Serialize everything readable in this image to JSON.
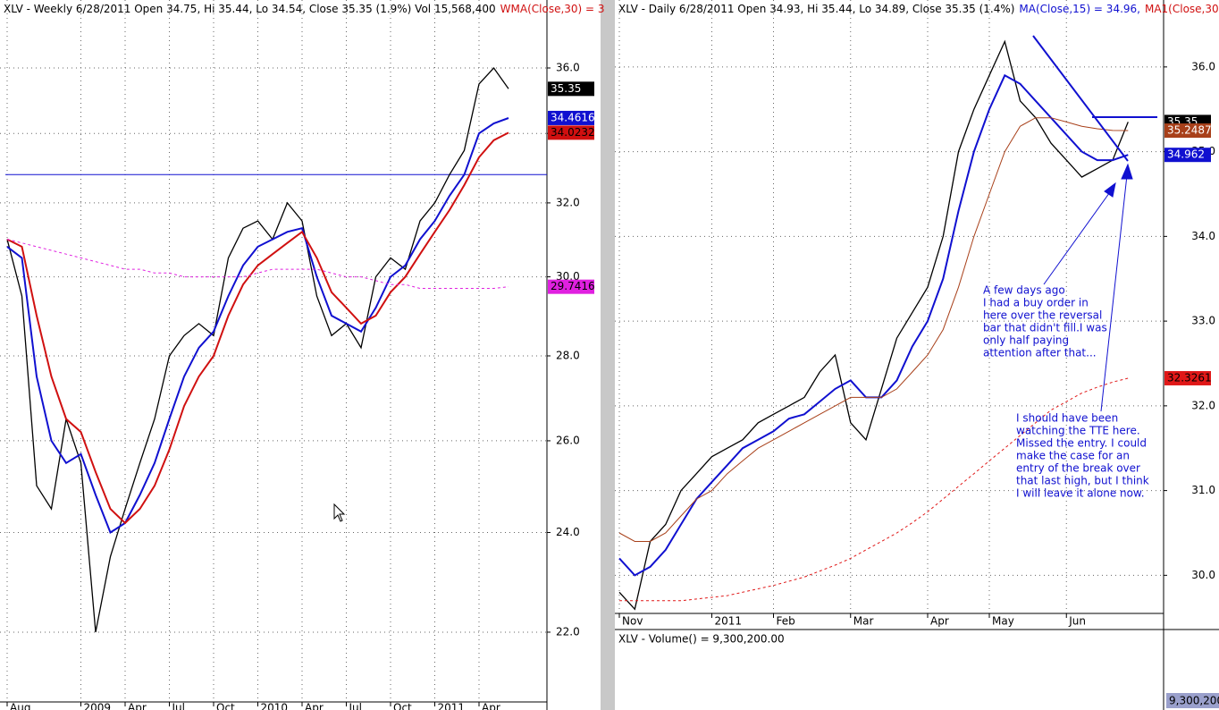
{
  "chart_data": [
    {
      "type": "line",
      "title_parts": [
        {
          "text": "XLV - Weekly 6/28/2011 Open 34.75, Hi 35.44, Lo 34.54, Close 35.35 (1.9%) Vol 15,568,400",
          "color": "#000000"
        },
        {
          "text": "WMA(Close,30) = 3",
          "color": "#d01010"
        }
      ],
      "categories": [
        "Aug",
        null,
        null,
        null,
        null,
        "2009",
        null,
        null,
        "Apr",
        null,
        null,
        "Jul",
        null,
        null,
        "Oct",
        null,
        null,
        "2010",
        null,
        null,
        "Apr",
        null,
        null,
        "Jul",
        null,
        null,
        "Oct",
        null,
        null,
        "2011",
        null,
        null,
        "Apr",
        null,
        null
      ],
      "series": [
        {
          "color": "#000000",
          "values": [
            31,
            29.5,
            25,
            24.5,
            26.5,
            25.5,
            22,
            23.5,
            24.5,
            25.5,
            26.5,
            28,
            28.5,
            28.8,
            28.5,
            30.5,
            31.3,
            31.5,
            31,
            32,
            31.5,
            29.5,
            28.5,
            28.8,
            28.2,
            30,
            30.5,
            30.2,
            31.5,
            32,
            32.8,
            33.5,
            35.5,
            36,
            35.35
          ]
        },
        {
          "color": "#1010d0",
          "values": [
            30.8,
            30.5,
            27.5,
            26,
            25.5,
            25.7,
            24.8,
            24,
            24.2,
            24.8,
            25.5,
            26.5,
            27.5,
            28.2,
            28.6,
            29.5,
            30.3,
            30.8,
            31,
            31.2,
            31.3,
            30,
            29,
            28.8,
            28.6,
            29.2,
            30,
            30.3,
            31,
            31.5,
            32.2,
            32.8,
            34,
            34.3,
            34.4616
          ]
        },
        {
          "color": "#d01010",
          "values": [
            31,
            30.8,
            29,
            27.5,
            26.5,
            26.2,
            25.3,
            24.5,
            24.2,
            24.5,
            25,
            25.8,
            26.8,
            27.5,
            28,
            29,
            29.8,
            30.3,
            30.6,
            30.9,
            31.2,
            30.5,
            29.6,
            29.2,
            28.8,
            29,
            29.6,
            30,
            30.6,
            31.2,
            31.8,
            32.5,
            33.3,
            33.8,
            34.0232
          ]
        },
        {
          "color": "#e020e0",
          "dashed": true,
          "values": [
            31,
            30.9,
            30.8,
            30.7,
            30.6,
            30.5,
            30.4,
            30.3,
            30.2,
            30.2,
            30.1,
            30.1,
            30,
            30,
            30,
            30,
            30,
            30.1,
            30.2,
            30.2,
            30.2,
            30.2,
            30.1,
            30,
            30,
            29.9,
            29.8,
            29.8,
            29.7,
            29.7,
            29.7,
            29.7,
            29.7,
            29.7,
            29.7416
          ]
        }
      ],
      "hline": 32.8,
      "log": true,
      "ylim": [
        20.7,
        38.2
      ],
      "yticks": [
        {
          "value": 22,
          "label": "22.0"
        },
        {
          "value": 24,
          "label": "24.0"
        },
        {
          "value": 26,
          "label": "26.0"
        },
        {
          "value": 28,
          "label": "28.0"
        },
        {
          "value": 30,
          "label": "30.0"
        },
        {
          "value": 32,
          "label": "32.0"
        },
        {
          "value": 34,
          "label": "34.0"
        },
        {
          "value": 36,
          "label": "36.0"
        }
      ],
      "grid": true
    },
    {
      "type": "line",
      "title_parts": [
        {
          "text": "XLV - Daily 6/28/2011 Open 34.93, Hi 35.44, Lo 34.89, Close 35.35 (1.4%)",
          "color": "#000000"
        },
        {
          "text": "MA(Close,15) = 34.96,",
          "color": "#1010d0"
        },
        {
          "text": "MA1(Close,30",
          "color": "#d01010"
        }
      ],
      "categories": [
        "Nov",
        null,
        null,
        null,
        null,
        null,
        "2011",
        null,
        null,
        null,
        "Feb",
        null,
        null,
        null,
        null,
        "Mar",
        null,
        null,
        null,
        null,
        "Apr",
        null,
        null,
        null,
        "May",
        null,
        null,
        null,
        null,
        "Jun",
        null,
        null,
        null,
        null
      ],
      "series": [
        {
          "color": "#000000",
          "values": [
            29.8,
            29.6,
            30.4,
            30.6,
            31,
            31.2,
            31.4,
            31.5,
            31.6,
            31.8,
            31.9,
            32,
            32.1,
            32.4,
            32.6,
            31.8,
            31.6,
            32.2,
            32.8,
            33.1,
            33.4,
            34,
            35,
            35.5,
            35.9,
            36.3,
            35.6,
            35.4,
            35.1,
            34.9,
            34.7,
            34.8,
            34.9,
            35.35
          ]
        },
        {
          "color": "#1010d0",
          "values": [
            30.2,
            30,
            30.1,
            30.3,
            30.6,
            30.9,
            31.1,
            31.3,
            31.5,
            31.6,
            31.7,
            31.85,
            31.9,
            32.05,
            32.2,
            32.3,
            32.1,
            32.1,
            32.3,
            32.7,
            33,
            33.5,
            34.3,
            35,
            35.5,
            35.9,
            35.8,
            35.6,
            35.4,
            35.2,
            35,
            34.9,
            34.9,
            34.962
          ]
        },
        {
          "color": "#a8401a",
          "values": [
            30.5,
            30.4,
            30.4,
            30.5,
            30.7,
            30.9,
            31,
            31.2,
            31.35,
            31.5,
            31.6,
            31.7,
            31.8,
            31.9,
            32,
            32.1,
            32.1,
            32.1,
            32.2,
            32.4,
            32.6,
            32.9,
            33.4,
            34,
            34.5,
            35,
            35.3,
            35.4,
            35.4,
            35.35,
            35.3,
            35.27,
            35.25,
            35.2487
          ]
        },
        {
          "color": "#e01818",
          "dashed": true,
          "values": [
            29.7,
            29.7,
            29.7,
            29.7,
            29.7,
            29.72,
            29.74,
            29.76,
            29.8,
            29.84,
            29.88,
            29.93,
            29.98,
            30.05,
            30.12,
            30.2,
            30.3,
            30.4,
            30.5,
            30.62,
            30.75,
            30.9,
            31.05,
            31.2,
            31.35,
            31.5,
            31.65,
            31.8,
            31.95,
            32.05,
            32.15,
            32.22,
            32.28,
            32.3261
          ]
        }
      ],
      "log": false,
      "ylim": [
        29.55,
        36.79
      ],
      "yticks": [
        {
          "value": 30,
          "label": "30.0"
        },
        {
          "value": 31,
          "label": "31.0"
        },
        {
          "value": 32,
          "label": "32.0"
        },
        {
          "value": 33,
          "label": "33.0"
        },
        {
          "value": 34,
          "label": "34.0"
        },
        {
          "value": 35,
          "label": "35.0"
        },
        {
          "value": 36,
          "label": "36.0"
        }
      ],
      "grid": true,
      "annotations": [
        {
          "lines": [
            "A few days ago",
            "I had a buy order in",
            "here over the reversal",
            "bar that didn't fill.I was",
            "only half paying",
            "attention after that..."
          ]
        },
        {
          "lines": [
            "I should have been",
            "watching the TTE here.",
            "Missed the entry. I could",
            "make the case for an",
            "entry of the break over",
            "that last high, but I think",
            "I will leave it alone now."
          ]
        }
      ]
    }
  ],
  "volume_panel": {
    "title": "XLV - Volume() = 9,300,200.00",
    "badge": "9,300,200"
  }
}
